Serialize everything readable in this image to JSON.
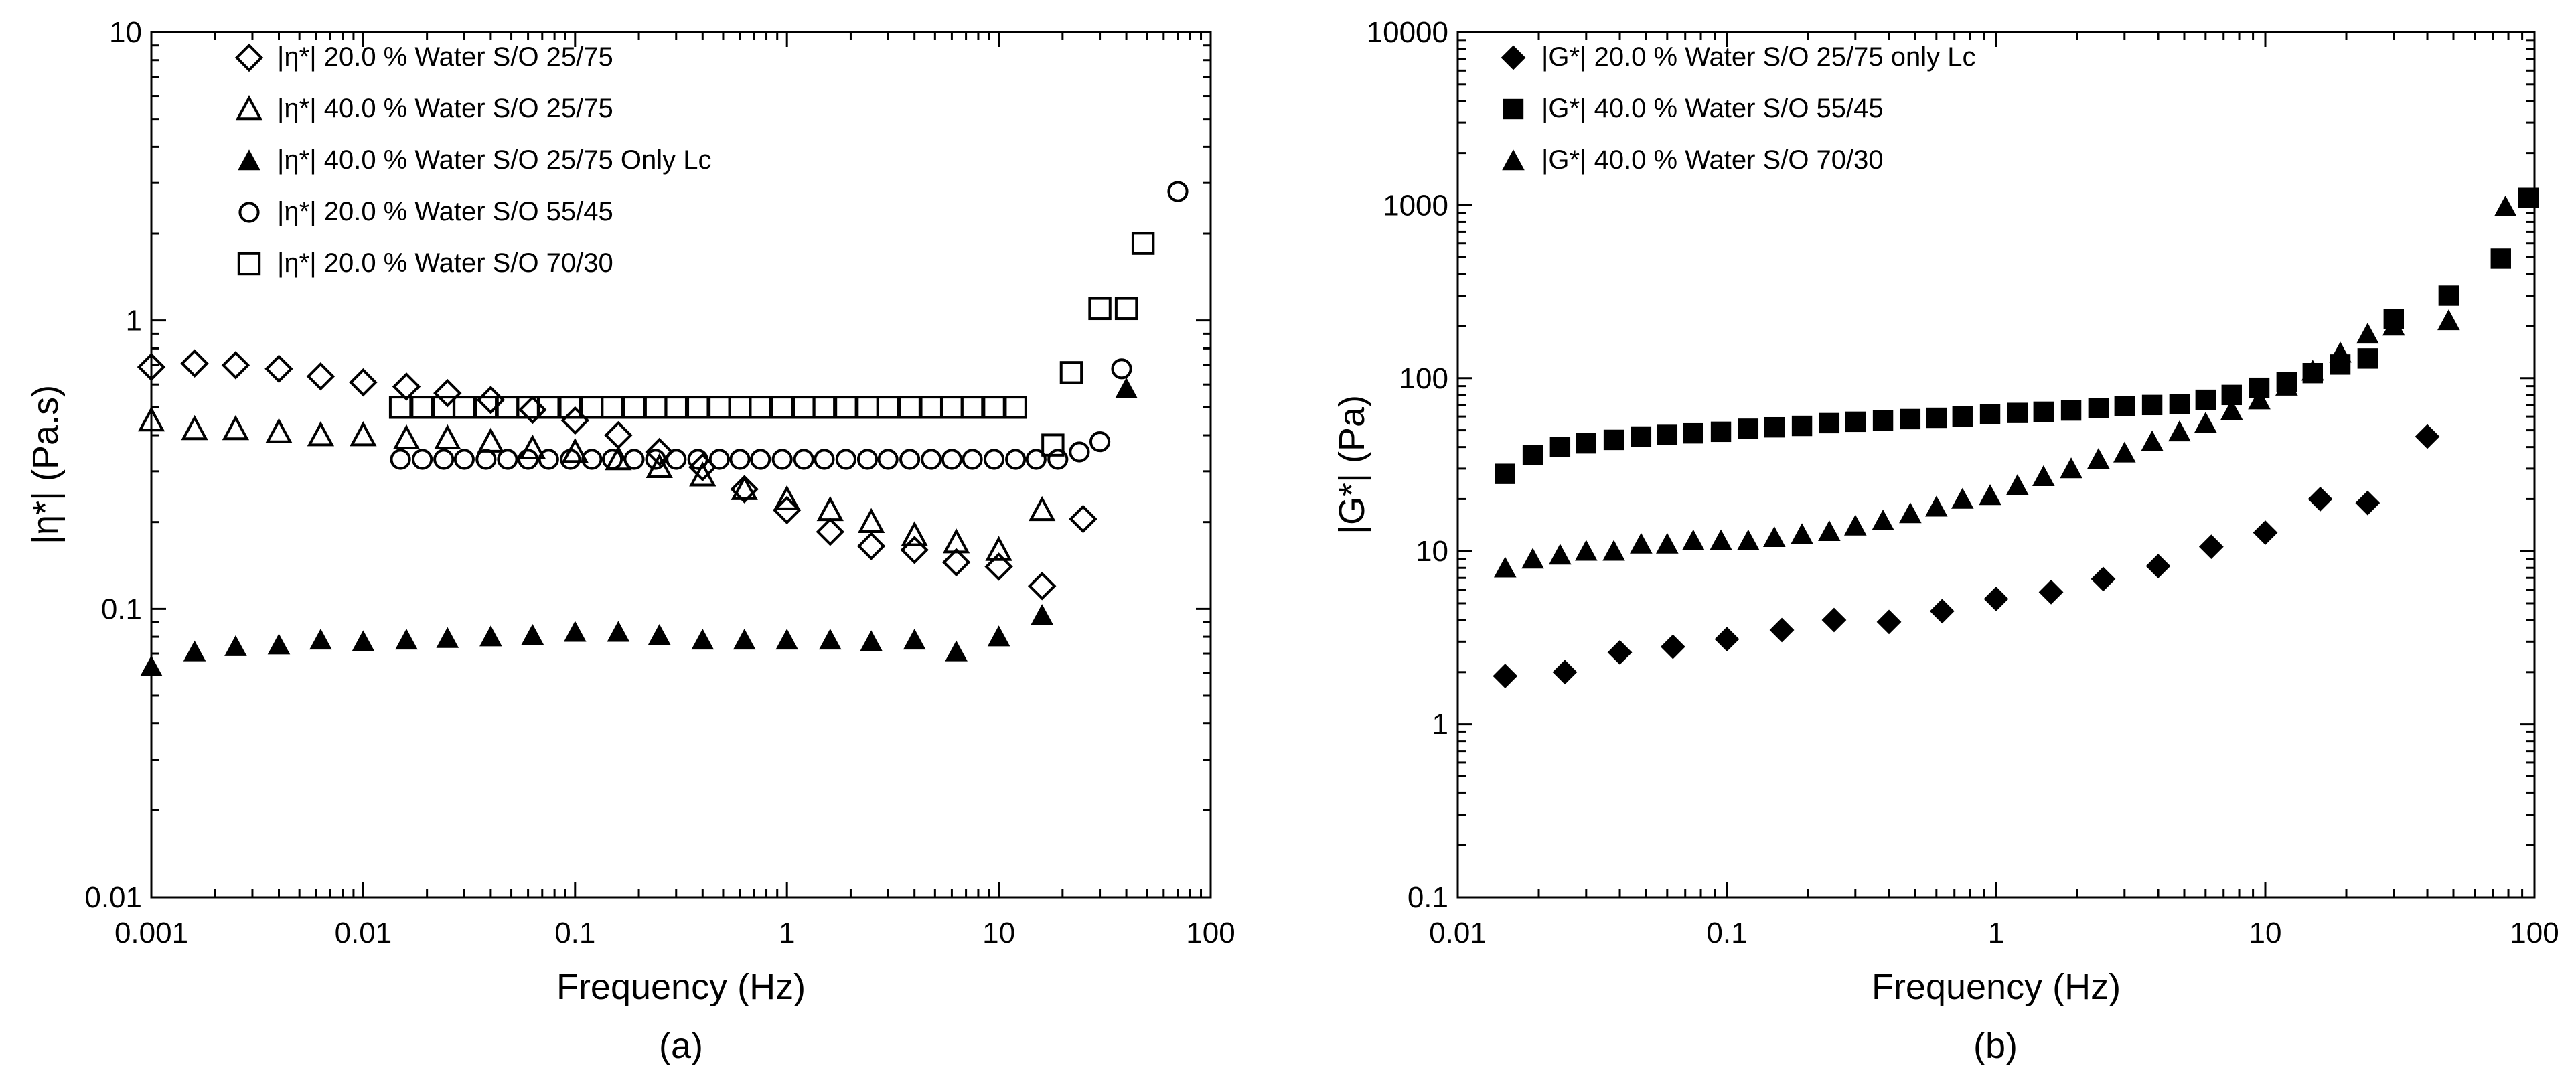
{
  "chart_data": [
    {
      "panel": "a",
      "type": "scatter",
      "panel_label": "(a)",
      "xlabel": "Frequency (Hz)",
      "ylabel": "|η*| (Pa.s)",
      "xscale": "log",
      "yscale": "log",
      "xlim": [
        0.001,
        100
      ],
      "ylim": [
        0.01,
        10
      ],
      "x_ticks": [
        0.001,
        0.01,
        0.1,
        1,
        10,
        100
      ],
      "x_tick_labels": [
        "0.001",
        "0.01",
        "0.1",
        "1",
        "10",
        "100"
      ],
      "y_ticks": [
        0.01,
        0.1,
        1,
        10
      ],
      "y_tick_labels": [
        "0.01",
        "0.1",
        "1",
        "10"
      ],
      "legend_position": "top-left",
      "series": [
        {
          "name": "|η*| 20.0 % Water S/O 25/75",
          "marker": "diamond-open",
          "x": [
            0.001,
            0.0016,
            0.0025,
            0.004,
            0.0063,
            0.01,
            0.016,
            0.025,
            0.04,
            0.063,
            0.1,
            0.16,
            0.25,
            0.4,
            0.63,
            1,
            1.6,
            2.5,
            4,
            6.3,
            10,
            16,
            25
          ],
          "y": [
            0.69,
            0.71,
            0.7,
            0.68,
            0.64,
            0.61,
            0.59,
            0.56,
            0.53,
            0.49,
            0.45,
            0.4,
            0.35,
            0.31,
            0.26,
            0.22,
            0.185,
            0.165,
            0.16,
            0.145,
            0.14,
            0.12,
            0.205
          ]
        },
        {
          "name": "|η*| 40.0 % Water S/O 25/75",
          "marker": "triangle-open",
          "x": [
            0.001,
            0.0016,
            0.0025,
            0.004,
            0.0063,
            0.01,
            0.016,
            0.025,
            0.04,
            0.063,
            0.1,
            0.16,
            0.25,
            0.4,
            0.63,
            1,
            1.6,
            2.5,
            4,
            6.3,
            10,
            16
          ],
          "y": [
            0.45,
            0.42,
            0.42,
            0.41,
            0.4,
            0.4,
            0.39,
            0.39,
            0.38,
            0.36,
            0.35,
            0.33,
            0.31,
            0.29,
            0.26,
            0.24,
            0.22,
            0.2,
            0.18,
            0.17,
            0.16,
            0.22
          ]
        },
        {
          "name": "|η*| 40.0 % Water S/O 25/75 Only Lc",
          "marker": "triangle-filled",
          "x": [
            0.001,
            0.0016,
            0.0025,
            0.004,
            0.0063,
            0.01,
            0.016,
            0.025,
            0.04,
            0.063,
            0.1,
            0.16,
            0.25,
            0.4,
            0.63,
            1,
            1.6,
            2.5,
            4,
            6.3,
            10,
            16,
            40
          ],
          "y": [
            0.063,
            0.071,
            0.074,
            0.075,
            0.078,
            0.077,
            0.078,
            0.079,
            0.08,
            0.081,
            0.083,
            0.083,
            0.081,
            0.078,
            0.078,
            0.078,
            0.078,
            0.077,
            0.078,
            0.071,
            0.08,
            0.095,
            0.58
          ]
        },
        {
          "name": "|η*| 20.0 % Water S/O 55/45",
          "marker": "circle-open",
          "x": [
            0.015,
            0.019,
            0.024,
            0.03,
            0.038,
            0.048,
            0.06,
            0.075,
            0.095,
            0.12,
            0.15,
            0.19,
            0.24,
            0.3,
            0.38,
            0.48,
            0.6,
            0.75,
            0.95,
            1.2,
            1.5,
            1.9,
            2.4,
            3,
            3.8,
            4.8,
            6,
            7.5,
            9.5,
            12,
            15,
            19,
            24,
            30,
            38,
            70
          ],
          "y": [
            0.33,
            0.33,
            0.33,
            0.33,
            0.33,
            0.33,
            0.33,
            0.33,
            0.33,
            0.33,
            0.33,
            0.33,
            0.33,
            0.33,
            0.33,
            0.33,
            0.33,
            0.33,
            0.33,
            0.33,
            0.33,
            0.33,
            0.33,
            0.33,
            0.33,
            0.33,
            0.33,
            0.33,
            0.33,
            0.33,
            0.33,
            0.33,
            0.35,
            0.38,
            0.68,
            2.8
          ]
        },
        {
          "name": "|η*| 20.0 % Water S/O 70/30",
          "marker": "square-open",
          "x": [
            0.015,
            0.019,
            0.024,
            0.03,
            0.038,
            0.048,
            0.06,
            0.075,
            0.095,
            0.12,
            0.15,
            0.19,
            0.24,
            0.3,
            0.38,
            0.48,
            0.6,
            0.75,
            0.95,
            1.2,
            1.5,
            1.9,
            2.4,
            3,
            3.8,
            4.8,
            6,
            7.5,
            9.5,
            12,
            18,
            22,
            30,
            40,
            48
          ],
          "y": [
            0.5,
            0.5,
            0.5,
            0.5,
            0.5,
            0.5,
            0.5,
            0.5,
            0.5,
            0.5,
            0.5,
            0.5,
            0.5,
            0.5,
            0.5,
            0.5,
            0.5,
            0.5,
            0.5,
            0.5,
            0.5,
            0.5,
            0.5,
            0.5,
            0.5,
            0.5,
            0.5,
            0.5,
            0.5,
            0.5,
            0.37,
            0.66,
            1.1,
            1.1,
            1.85
          ]
        }
      ]
    },
    {
      "panel": "b",
      "type": "scatter",
      "panel_label": "(b)",
      "xlabel": "Frequency (Hz)",
      "ylabel": "|G*| (Pa)",
      "xscale": "log",
      "yscale": "log",
      "xlim": [
        0.01,
        100
      ],
      "ylim": [
        0.1,
        10000
      ],
      "x_ticks": [
        0.01,
        0.1,
        1,
        10,
        100
      ],
      "x_tick_labels": [
        "0.01",
        "0.1",
        "1",
        "10",
        "100"
      ],
      "y_ticks": [
        0.1,
        1,
        10,
        100,
        1000,
        10000
      ],
      "y_tick_labels": [
        "0.1",
        "1",
        "10",
        "100",
        "1000",
        "10000"
      ],
      "legend_position": "top-left",
      "series": [
        {
          "name": "|G*| 20.0 % Water S/O 25/75 only Lc",
          "marker": "diamond-filled",
          "x": [
            0.015,
            0.025,
            0.04,
            0.063,
            0.1,
            0.16,
            0.25,
            0.4,
            0.63,
            1,
            1.6,
            2.5,
            4,
            6.3,
            10,
            16,
            24,
            40
          ],
          "y": [
            1.9,
            2.0,
            2.6,
            2.8,
            3.1,
            3.5,
            4.0,
            3.9,
            4.5,
            5.3,
            5.8,
            6.9,
            8.2,
            10.6,
            12.8,
            20,
            19,
            46
          ]
        },
        {
          "name": "|G*| 40.0 % Water S/O 55/45",
          "marker": "square-filled",
          "x": [
            0.015,
            0.019,
            0.024,
            0.03,
            0.038,
            0.048,
            0.06,
            0.075,
            0.095,
            0.12,
            0.15,
            0.19,
            0.24,
            0.3,
            0.38,
            0.48,
            0.6,
            0.75,
            0.95,
            1.2,
            1.5,
            1.9,
            2.4,
            3,
            3.8,
            4.8,
            6,
            7.5,
            9.5,
            12,
            15,
            19,
            24,
            30,
            48,
            75,
            95
          ],
          "y": [
            28,
            36,
            40,
            42,
            44,
            46,
            47,
            48,
            49,
            51,
            52,
            53,
            55,
            56,
            57,
            58,
            59,
            60,
            62,
            63,
            64,
            65,
            67,
            69,
            70,
            71,
            75,
            80,
            88,
            95,
            107,
            120,
            130,
            220,
            300,
            490,
            1100
          ]
        },
        {
          "name": "|G*| 40.0 % Water S/O 70/30",
          "marker": "triangle-filled",
          "x": [
            0.015,
            0.019,
            0.024,
            0.03,
            0.038,
            0.048,
            0.06,
            0.075,
            0.095,
            0.12,
            0.15,
            0.19,
            0.24,
            0.3,
            0.38,
            0.48,
            0.6,
            0.75,
            0.95,
            1.2,
            1.5,
            1.9,
            2.4,
            3,
            3.8,
            4.8,
            6,
            7.5,
            9.5,
            12,
            15,
            19,
            24,
            30,
            48,
            78
          ],
          "y": [
            8,
            9,
            9.5,
            10,
            10,
            11,
            11,
            11.5,
            11.5,
            11.5,
            12,
            12.5,
            13,
            14,
            15,
            16.5,
            18,
            20,
            21,
            24,
            27,
            30,
            34,
            37,
            43,
            49,
            55,
            65,
            75,
            90,
            110,
            140,
            180,
            200,
            215,
            980
          ]
        }
      ]
    }
  ]
}
